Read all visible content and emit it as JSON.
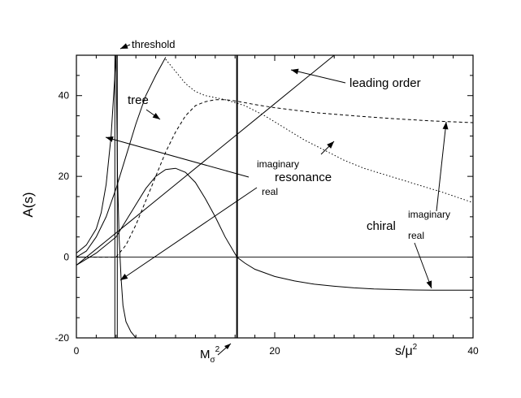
{
  "chart_data": {
    "type": "line",
    "title": "",
    "xlabel": "s/μ²",
    "ylabel": "A(s)",
    "xlim": [
      0,
      40
    ],
    "ylim": [
      -20,
      50
    ],
    "x_ticks": [
      0,
      20,
      40
    ],
    "y_ticks": [
      -20,
      0,
      20,
      40
    ],
    "grid": false,
    "markers": {
      "M_sigma_sq_label": "M",
      "M_sigma_sub": "σ",
      "M_sigma_sup": "2",
      "M_sigma_x": 16.2,
      "threshold_x": 4
    },
    "annotations": {
      "threshold": "threshold",
      "tree": "tree",
      "leading_order": "leading order",
      "imaginary_1": "imaginary",
      "resonance": "resonance",
      "real_1": "real",
      "chiral": "chiral",
      "imaginary_2": "imaginary",
      "real_2": "real"
    },
    "series": [
      {
        "key": "tree",
        "style": "solid",
        "points": [
          [
            0,
            0
          ],
          [
            1,
            1.5
          ],
          [
            2,
            5
          ],
          [
            3,
            10
          ],
          [
            4,
            17
          ],
          [
            5,
            25
          ],
          [
            6,
            33
          ],
          [
            7,
            40
          ],
          [
            8,
            45
          ],
          [
            9,
            49.5
          ]
        ]
      },
      {
        "key": "leading_order",
        "style": "solid",
        "points": [
          [
            0,
            -2
          ],
          [
            5,
            8
          ],
          [
            10,
            18
          ],
          [
            15,
            28
          ],
          [
            20,
            38
          ],
          [
            23,
            44
          ],
          [
            26,
            50
          ]
        ]
      },
      {
        "key": "threshold_pole",
        "style": "solid",
        "points": [
          [
            0,
            1
          ],
          [
            1,
            3
          ],
          [
            2,
            7
          ],
          [
            2.5,
            11
          ],
          [
            3,
            18
          ],
          [
            3.5,
            30
          ],
          [
            3.8,
            42
          ],
          [
            4,
            50
          ]
        ]
      },
      {
        "key": "resonance_imaginary",
        "style": "dashed",
        "points": [
          [
            0,
            0
          ],
          [
            4,
            0
          ],
          [
            5,
            3
          ],
          [
            6,
            8
          ],
          [
            7,
            14
          ],
          [
            8,
            20
          ],
          [
            9,
            26
          ],
          [
            10,
            31
          ],
          [
            11,
            35
          ],
          [
            12,
            37.5
          ],
          [
            13,
            38.5
          ],
          [
            14,
            39
          ],
          [
            15,
            39
          ],
          [
            16,
            38.7
          ],
          [
            18,
            37.8
          ],
          [
            20,
            37
          ],
          [
            24,
            35.8
          ],
          [
            28,
            35
          ],
          [
            32,
            34.3
          ],
          [
            36,
            33.7
          ],
          [
            40,
            33.3
          ]
        ]
      },
      {
        "key": "resonance_real",
        "style": "solid",
        "points": [
          [
            0,
            -2
          ],
          [
            2,
            1
          ],
          [
            4,
            5
          ],
          [
            5,
            9
          ],
          [
            6,
            13
          ],
          [
            7,
            17
          ],
          [
            8,
            20
          ],
          [
            9,
            21.7
          ],
          [
            10,
            22
          ],
          [
            11,
            21
          ],
          [
            12,
            18.5
          ],
          [
            13,
            14.5
          ],
          [
            14,
            10
          ],
          [
            15,
            5
          ],
          [
            16.2,
            0
          ],
          [
            17,
            -1.5
          ],
          [
            18,
            -3
          ],
          [
            20,
            -4.8
          ],
          [
            22,
            -5.9
          ],
          [
            24,
            -6.7
          ],
          [
            26,
            -7.2
          ],
          [
            28,
            -7.6
          ],
          [
            30,
            -7.9
          ],
          [
            33,
            -8.1
          ],
          [
            36,
            -8.2
          ],
          [
            40,
            -8.2
          ]
        ]
      },
      {
        "key": "chiral_imaginary",
        "style": "dotted",
        "points": [
          [
            9,
            49
          ],
          [
            10,
            46
          ],
          [
            11,
            43
          ],
          [
            12,
            41
          ],
          [
            13,
            40
          ],
          [
            15,
            39
          ],
          [
            17,
            37.5
          ],
          [
            19,
            35
          ],
          [
            21,
            32
          ],
          [
            23,
            29
          ],
          [
            25,
            26.5
          ],
          [
            27,
            24
          ],
          [
            29,
            22
          ],
          [
            31,
            20.5
          ],
          [
            33,
            19
          ],
          [
            35,
            17.5
          ],
          [
            37,
            16
          ],
          [
            40,
            13.5
          ]
        ]
      },
      {
        "key": "chiral_real",
        "style": "solid",
        "points": [
          [
            4,
            50
          ],
          [
            4.15,
            20
          ],
          [
            4.3,
            5
          ],
          [
            4.5,
            -5
          ],
          [
            4.7,
            -12
          ],
          [
            5,
            -16
          ],
          [
            5.5,
            -18.5
          ],
          [
            6,
            -20
          ]
        ]
      }
    ]
  }
}
